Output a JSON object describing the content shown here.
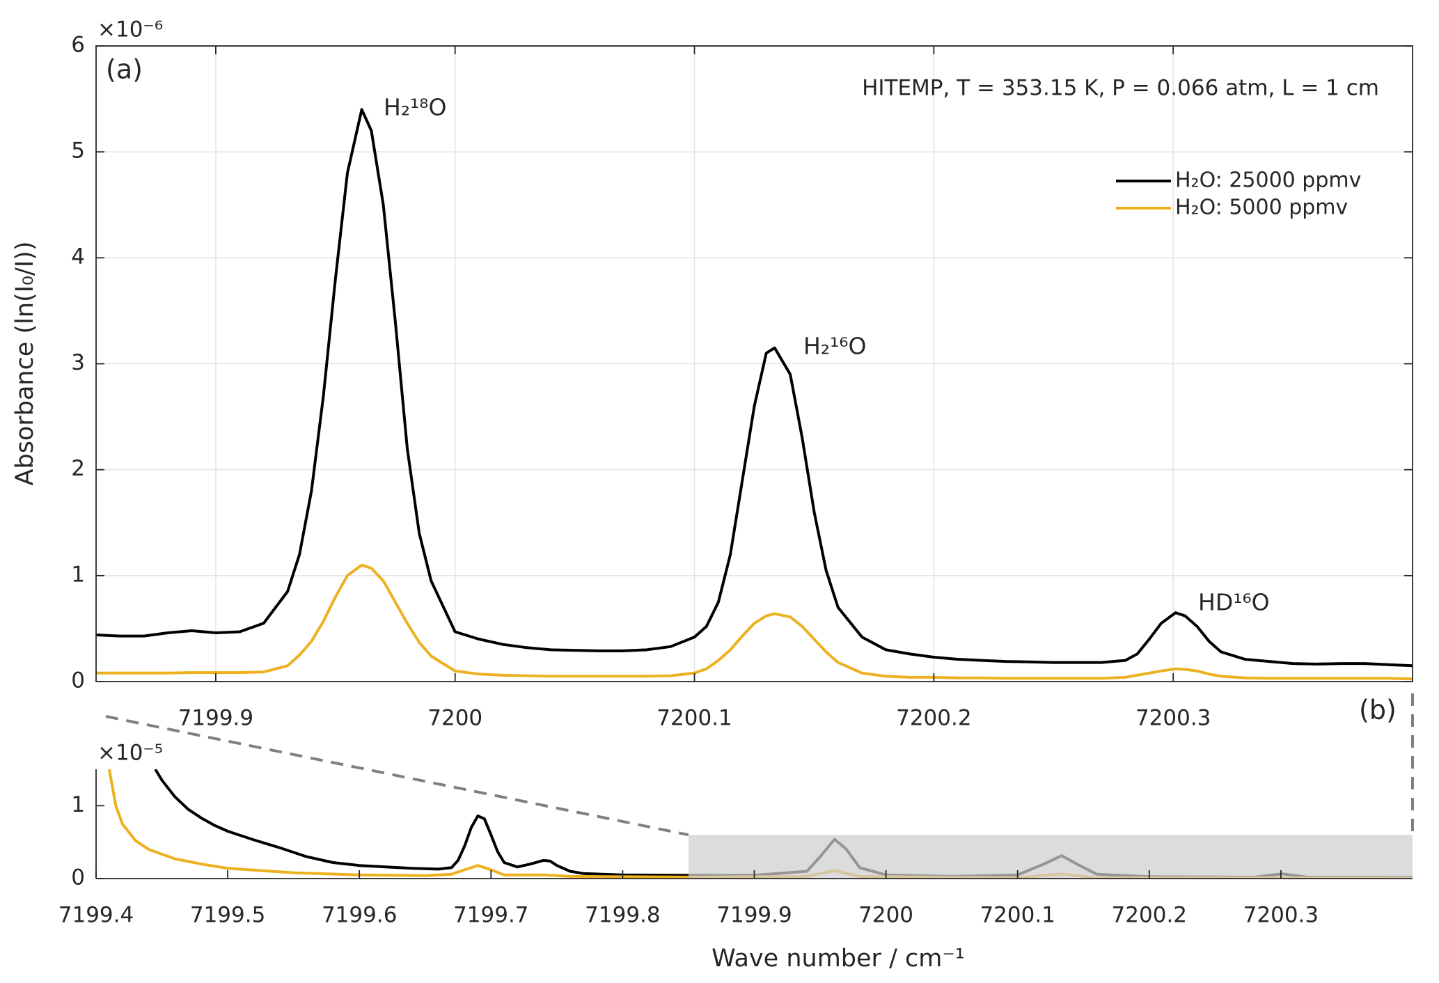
{
  "chart_data": [
    {
      "type": "line",
      "ylabel": "Absorbance (ln(I₀/I))",
      "exponent": "×10⁻⁶",
      "panel": "(a)",
      "annotation": "HITEMP, T = 353.15 K, P = 0.066 atm, L = 1 cm",
      "peak_labels": [
        "H₂¹⁸O",
        "H₂¹⁶O",
        "HD¹⁶O"
      ],
      "xlim": [
        7199.85,
        7200.4
      ],
      "ylim": [
        0,
        6
      ],
      "xticks": [
        7199.9,
        7200,
        7200.1,
        7200.2,
        7200.3
      ],
      "yticks": [
        0,
        1,
        2,
        3,
        4,
        5,
        6
      ],
      "grid": true,
      "legend": "northeast",
      "series": [
        {
          "name": "H₂O: 25000 ppmv",
          "color": "#000000",
          "x": [
            7199.85,
            7199.86,
            7199.87,
            7199.88,
            7199.89,
            7199.9,
            7199.91,
            7199.92,
            7199.93,
            7199.935,
            7199.94,
            7199.945,
            7199.95,
            7199.955,
            7199.961,
            7199.965,
            7199.97,
            7199.975,
            7199.98,
            7199.985,
            7199.99,
            7200,
            7200.01,
            7200.02,
            7200.03,
            7200.04,
            7200.05,
            7200.06,
            7200.07,
            7200.08,
            7200.09,
            7200.1,
            7200.105,
            7200.11,
            7200.115,
            7200.12,
            7200.125,
            7200.13,
            7200.1335,
            7200.14,
            7200.145,
            7200.15,
            7200.155,
            7200.16,
            7200.17,
            7200.18,
            7200.19,
            7200.2,
            7200.21,
            7200.22,
            7200.23,
            7200.24,
            7200.25,
            7200.26,
            7200.27,
            7200.28,
            7200.285,
            7200.29,
            7200.295,
            7200.301,
            7200.305,
            7200.31,
            7200.315,
            7200.32,
            7200.33,
            7200.34,
            7200.35,
            7200.36,
            7200.37,
            7200.38,
            7200.39,
            7200.4
          ],
          "values": [
            0.44,
            0.43,
            0.43,
            0.46,
            0.48,
            0.46,
            0.47,
            0.55,
            0.85,
            1.2,
            1.8,
            2.7,
            3.8,
            4.8,
            5.4,
            5.2,
            4.5,
            3.4,
            2.2,
            1.4,
            0.95,
            0.47,
            0.4,
            0.35,
            0.32,
            0.3,
            0.295,
            0.29,
            0.29,
            0.3,
            0.33,
            0.42,
            0.52,
            0.75,
            1.2,
            1.9,
            2.6,
            3.1,
            3.15,
            2.9,
            2.3,
            1.6,
            1.05,
            0.7,
            0.42,
            0.3,
            0.26,
            0.23,
            0.21,
            0.2,
            0.19,
            0.185,
            0.18,
            0.18,
            0.18,
            0.2,
            0.26,
            0.4,
            0.55,
            0.65,
            0.62,
            0.52,
            0.38,
            0.28,
            0.21,
            0.19,
            0.17,
            0.165,
            0.17,
            0.17,
            0.16,
            0.15
          ]
        },
        {
          "name": "H₂O: 5000 ppmv",
          "color": "#edb120",
          "x": [
            7199.85,
            7199.86,
            7199.87,
            7199.88,
            7199.89,
            7199.9,
            7199.91,
            7199.92,
            7199.93,
            7199.935,
            7199.94,
            7199.945,
            7199.95,
            7199.955,
            7199.961,
            7199.965,
            7199.97,
            7199.975,
            7199.98,
            7199.985,
            7199.99,
            7200,
            7200.01,
            7200.02,
            7200.03,
            7200.04,
            7200.05,
            7200.06,
            7200.07,
            7200.08,
            7200.09,
            7200.1,
            7200.105,
            7200.11,
            7200.115,
            7200.12,
            7200.125,
            7200.13,
            7200.1335,
            7200.14,
            7200.145,
            7200.15,
            7200.155,
            7200.16,
            7200.17,
            7200.18,
            7200.19,
            7200.2,
            7200.21,
            7200.22,
            7200.23,
            7200.24,
            7200.25,
            7200.26,
            7200.27,
            7200.28,
            7200.285,
            7200.29,
            7200.295,
            7200.301,
            7200.305,
            7200.31,
            7200.315,
            7200.32,
            7200.33,
            7200.34,
            7200.35,
            7200.36,
            7200.37,
            7200.38,
            7200.39,
            7200.4
          ],
          "values": [
            0.08,
            0.08,
            0.08,
            0.08,
            0.085,
            0.085,
            0.085,
            0.09,
            0.15,
            0.25,
            0.38,
            0.57,
            0.8,
            1.0,
            1.1,
            1.07,
            0.95,
            0.75,
            0.55,
            0.37,
            0.24,
            0.1,
            0.07,
            0.06,
            0.055,
            0.05,
            0.05,
            0.05,
            0.05,
            0.05,
            0.055,
            0.08,
            0.12,
            0.2,
            0.3,
            0.43,
            0.55,
            0.62,
            0.64,
            0.61,
            0.52,
            0.4,
            0.28,
            0.18,
            0.08,
            0.05,
            0.04,
            0.04,
            0.035,
            0.035,
            0.03,
            0.03,
            0.03,
            0.03,
            0.03,
            0.04,
            0.06,
            0.08,
            0.1,
            0.12,
            0.115,
            0.1,
            0.07,
            0.05,
            0.035,
            0.03,
            0.03,
            0.03,
            0.03,
            0.03,
            0.03,
            0.025
          ]
        }
      ]
    },
    {
      "type": "line",
      "xlabel": "Wave number / cm⁻¹",
      "exponent": "×10⁻⁵",
      "panel": "(b)",
      "xlim": [
        7199.4,
        7200.4
      ],
      "ylim": [
        0,
        1.5
      ],
      "xticks": [
        7199.4,
        7199.5,
        7199.6,
        7199.7,
        7199.8,
        7199.9,
        7200,
        7200.1,
        7200.2,
        7200.3
      ],
      "yticks": [
        0,
        1
      ],
      "grid": false,
      "zoom_box": {
        "xlim": [
          7199.85,
          7200.4
        ],
        "ylim": [
          0,
          0.6
        ]
      },
      "series": [
        {
          "color": "#000000",
          "x": [
            7199.445,
            7199.45,
            7199.46,
            7199.47,
            7199.48,
            7199.49,
            7199.5,
            7199.52,
            7199.54,
            7199.56,
            7199.58,
            7199.6,
            7199.62,
            7199.64,
            7199.66,
            7199.67,
            7199.675,
            7199.68,
            7199.685,
            7199.69,
            7199.695,
            7199.7,
            7199.705,
            7199.71,
            7199.72,
            7199.73,
            7199.74,
            7199.745,
            7199.75,
            7199.76,
            7199.77,
            7199.8,
            7199.85,
            7199.9,
            7199.94,
            7199.95,
            7199.961,
            7199.97,
            7199.98,
            7200,
            7200.05,
            7200.1,
            7200.12,
            7200.1335,
            7200.145,
            7200.16,
            7200.2,
            7200.28,
            7200.301,
            7200.32,
            7200.4
          ],
          "values": [
            1.5,
            1.35,
            1.12,
            0.95,
            0.83,
            0.73,
            0.65,
            0.53,
            0.42,
            0.3,
            0.22,
            0.18,
            0.16,
            0.14,
            0.13,
            0.15,
            0.25,
            0.45,
            0.7,
            0.86,
            0.82,
            0.6,
            0.37,
            0.22,
            0.16,
            0.2,
            0.25,
            0.24,
            0.18,
            0.1,
            0.07,
            0.05,
            0.045,
            0.045,
            0.1,
            0.3,
            0.54,
            0.4,
            0.15,
            0.05,
            0.03,
            0.05,
            0.2,
            0.315,
            0.2,
            0.06,
            0.025,
            0.02,
            0.065,
            0.02,
            0.015
          ]
        },
        {
          "color": "#edb120",
          "x": [
            7199.41,
            7199.415,
            7199.42,
            7199.43,
            7199.44,
            7199.46,
            7199.48,
            7199.5,
            7199.55,
            7199.6,
            7199.65,
            7199.67,
            7199.68,
            7199.69,
            7199.7,
            7199.71,
            7199.74,
            7199.76,
            7199.85,
            7199.94,
            7199.961,
            7199.98,
            7200.1,
            7200.1335,
            7200.16,
            7200.301,
            7200.4
          ],
          "values": [
            1.5,
            1.0,
            0.75,
            0.52,
            0.4,
            0.27,
            0.2,
            0.14,
            0.08,
            0.05,
            0.04,
            0.06,
            0.12,
            0.18,
            0.12,
            0.05,
            0.05,
            0.03,
            0.02,
            0.03,
            0.11,
            0.03,
            0.01,
            0.064,
            0.01,
            0.012,
            0.005
          ]
        }
      ]
    }
  ]
}
